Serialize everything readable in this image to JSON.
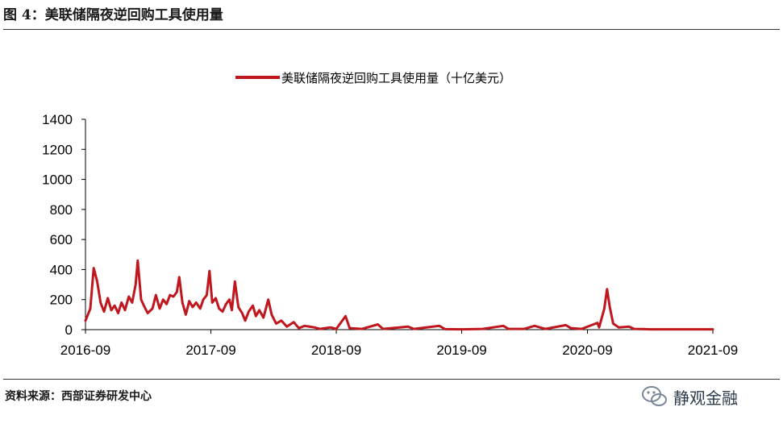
{
  "figure": {
    "title": "图 4：美联储隔夜逆回购工具使用量",
    "source": "资料来源：西部证券研发中心",
    "watermark": "静观金融",
    "watermark_icon": "wechat-icon"
  },
  "colors": {
    "series": "#c0161d",
    "axis": "#000000",
    "text": "#000000"
  },
  "chart_data": {
    "type": "line",
    "title": "",
    "xlabel": "",
    "ylabel": "",
    "ylim": [
      0,
      1400
    ],
    "yticks": [
      0,
      200,
      400,
      600,
      800,
      1000,
      1200,
      1400
    ],
    "xticks": [
      {
        "date": "2016-09",
        "label": "2016-09"
      },
      {
        "date": "2017-09",
        "label": "2017-09"
      },
      {
        "date": "2018-09",
        "label": "2018-09"
      },
      {
        "date": "2019-09",
        "label": "2019-09"
      },
      {
        "date": "2020-09",
        "label": "2020-09"
      },
      {
        "date": "2021-09",
        "label": "2021-09"
      }
    ],
    "xlim": [
      "2016-09-01",
      "2021-09-01"
    ],
    "grid": false,
    "legend": "top-center",
    "series": [
      {
        "name": "美联储隔夜逆回购工具使用量（十亿美元）",
        "points": [
          [
            "2016-09-01",
            60
          ],
          [
            "2016-09-15",
            140
          ],
          [
            "2016-09-25",
            410
          ],
          [
            "2016-10-05",
            320
          ],
          [
            "2016-10-15",
            180
          ],
          [
            "2016-10-25",
            120
          ],
          [
            "2016-11-05",
            210
          ],
          [
            "2016-11-15",
            130
          ],
          [
            "2016-11-25",
            160
          ],
          [
            "2016-12-05",
            110
          ],
          [
            "2016-12-15",
            180
          ],
          [
            "2016-12-25",
            130
          ],
          [
            "2017-01-05",
            220
          ],
          [
            "2017-01-15",
            180
          ],
          [
            "2017-01-25",
            300
          ],
          [
            "2017-01-31",
            460
          ],
          [
            "2017-02-10",
            200
          ],
          [
            "2017-02-20",
            150
          ],
          [
            "2017-03-01",
            110
          ],
          [
            "2017-03-15",
            140
          ],
          [
            "2017-03-25",
            230
          ],
          [
            "2017-04-05",
            140
          ],
          [
            "2017-04-15",
            200
          ],
          [
            "2017-04-25",
            170
          ],
          [
            "2017-05-05",
            230
          ],
          [
            "2017-05-15",
            220
          ],
          [
            "2017-05-25",
            250
          ],
          [
            "2017-06-01",
            350
          ],
          [
            "2017-06-10",
            180
          ],
          [
            "2017-06-20",
            100
          ],
          [
            "2017-06-30",
            190
          ],
          [
            "2017-07-10",
            150
          ],
          [
            "2017-07-20",
            180
          ],
          [
            "2017-08-01",
            140
          ],
          [
            "2017-08-10",
            200
          ],
          [
            "2017-08-20",
            230
          ],
          [
            "2017-08-28",
            390
          ],
          [
            "2017-09-05",
            180
          ],
          [
            "2017-09-15",
            210
          ],
          [
            "2017-09-25",
            140
          ],
          [
            "2017-10-05",
            120
          ],
          [
            "2017-10-15",
            170
          ],
          [
            "2017-10-25",
            200
          ],
          [
            "2017-11-01",
            130
          ],
          [
            "2017-11-10",
            320
          ],
          [
            "2017-11-20",
            150
          ],
          [
            "2017-12-01",
            110
          ],
          [
            "2017-12-10",
            60
          ],
          [
            "2017-12-20",
            120
          ],
          [
            "2018-01-01",
            160
          ],
          [
            "2018-01-10",
            90
          ],
          [
            "2018-01-20",
            130
          ],
          [
            "2018-02-01",
            80
          ],
          [
            "2018-02-15",
            200
          ],
          [
            "2018-02-25",
            100
          ],
          [
            "2018-03-10",
            40
          ],
          [
            "2018-03-25",
            60
          ],
          [
            "2018-04-10",
            20
          ],
          [
            "2018-04-30",
            50
          ],
          [
            "2018-05-15",
            10
          ],
          [
            "2018-06-01",
            25
          ],
          [
            "2018-06-29",
            15
          ],
          [
            "2018-07-15",
            5
          ],
          [
            "2018-08-15",
            15
          ],
          [
            "2018-09-01",
            5
          ],
          [
            "2018-09-28",
            90
          ],
          [
            "2018-10-10",
            10
          ],
          [
            "2018-11-15",
            5
          ],
          [
            "2018-12-31",
            35
          ],
          [
            "2019-01-15",
            5
          ],
          [
            "2019-03-29",
            20
          ],
          [
            "2019-04-15",
            5
          ],
          [
            "2019-06-28",
            25
          ],
          [
            "2019-07-15",
            3
          ],
          [
            "2019-09-01",
            2
          ],
          [
            "2019-11-01",
            5
          ],
          [
            "2019-12-31",
            25
          ],
          [
            "2020-01-15",
            5
          ],
          [
            "2020-03-01",
            5
          ],
          [
            "2020-03-31",
            25
          ],
          [
            "2020-05-01",
            5
          ],
          [
            "2020-06-30",
            30
          ],
          [
            "2020-07-15",
            10
          ],
          [
            "2020-08-15",
            5
          ],
          [
            "2020-09-30",
            45
          ],
          [
            "2020-10-05",
            15
          ],
          [
            "2020-10-20",
            140
          ],
          [
            "2020-10-28",
            270
          ],
          [
            "2020-11-05",
            150
          ],
          [
            "2020-11-15",
            40
          ],
          [
            "2020-12-01",
            15
          ],
          [
            "2020-12-31",
            20
          ],
          [
            "2021-01-15",
            5
          ],
          [
            "2021-02-15",
            3
          ],
          [
            "2021-03-01",
            2
          ],
          [
            "2021-09-01",
            2
          ]
        ]
      }
    ]
  }
}
